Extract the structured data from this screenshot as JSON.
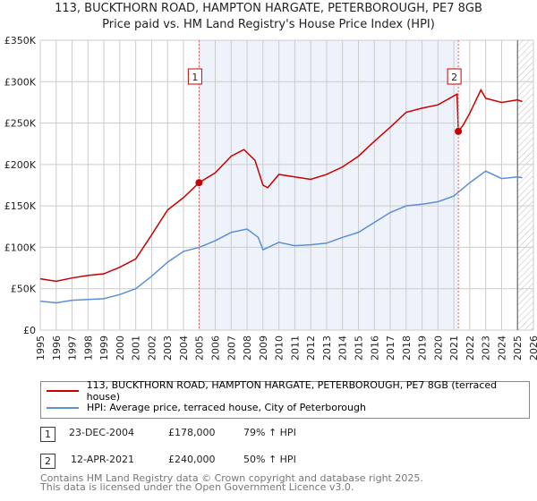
{
  "title": "113, BUCKTHORN ROAD, HAMPTON HARGATE, PETERBOROUGH, PE7 8GB",
  "subtitle": "Price paid vs. HM Land Registry's House Price Index (HPI)",
  "chart_data": {
    "type": "line",
    "title": "113, BUCKTHORN ROAD, HAMPTON HARGATE, PETERBOROUGH, PE7 8GB",
    "xlim": [
      1995,
      2026
    ],
    "ylim": [
      0,
      350000
    ],
    "x_ticks": [
      "1995",
      "1996",
      "1997",
      "1998",
      "1999",
      "2000",
      "2001",
      "2002",
      "2003",
      "2004",
      "2005",
      "2006",
      "2007",
      "2008",
      "2009",
      "2010",
      "2011",
      "2012",
      "2013",
      "2014",
      "2015",
      "2016",
      "2017",
      "2018",
      "2019",
      "2020",
      "2021",
      "2022",
      "2023",
      "2024",
      "2025",
      "2026"
    ],
    "y_ticks": [
      {
        "v": 0,
        "label": "£0"
      },
      {
        "v": 50000,
        "label": "£50K"
      },
      {
        "v": 100000,
        "label": "£100K"
      },
      {
        "v": 150000,
        "label": "£150K"
      },
      {
        "v": 200000,
        "label": "£200K"
      },
      {
        "v": 250000,
        "label": "£250K"
      },
      {
        "v": 300000,
        "label": "£300K"
      },
      {
        "v": 350000,
        "label": "£350K"
      }
    ],
    "grid": true,
    "series": [
      {
        "name": "113, BUCKTHORN ROAD, HAMPTON HARGATE, PETERBOROUGH, PE7 8GB (terraced house)",
        "color": "#cc0000",
        "x": [
          1995,
          1996,
          1997,
          1998,
          1999,
          2000,
          2001,
          2002,
          2003,
          2004,
          2004.98,
          2006,
          2007,
          2007.8,
          2008.5,
          2009,
          2009.3,
          2010,
          2011,
          2012,
          2013,
          2014,
          2015,
          2016,
          2017,
          2018,
          2019,
          2020,
          2021.2,
          2021.28,
          2021.6,
          2022,
          2022.7,
          2023,
          2024,
          2025,
          2025.3
        ],
        "y": [
          62000,
          59000,
          63000,
          66000,
          68000,
          76000,
          86000,
          115000,
          145000,
          160000,
          178000,
          190000,
          210000,
          218000,
          205000,
          175000,
          172000,
          188000,
          185000,
          182000,
          188000,
          197000,
          210000,
          228000,
          245000,
          263000,
          268000,
          272000,
          285000,
          240000,
          248000,
          262000,
          290000,
          280000,
          275000,
          278000,
          276000
        ]
      },
      {
        "name": "HPI: Average price, terraced house, City of Peterborough",
        "color": "#5b8fd6",
        "x": [
          1995,
          1996,
          1997,
          1998,
          1999,
          2000,
          2001,
          2002,
          2003,
          2004,
          2005,
          2006,
          2007,
          2008,
          2008.7,
          2009,
          2010,
          2011,
          2012,
          2013,
          2014,
          2015,
          2016,
          2017,
          2018,
          2019,
          2020,
          2021,
          2022,
          2023,
          2024,
          2025,
          2025.3
        ],
        "y": [
          35000,
          33000,
          36000,
          37000,
          38000,
          43000,
          50000,
          65000,
          82000,
          95000,
          100000,
          108000,
          118000,
          122000,
          112000,
          97000,
          106000,
          102000,
          103000,
          105000,
          112000,
          118000,
          130000,
          142000,
          150000,
          152000,
          155000,
          162000,
          178000,
          192000,
          183000,
          185000,
          184000
        ]
      }
    ],
    "sales": [
      {
        "id": "1",
        "x": 2004.98,
        "price": 178000,
        "date": "23-DEC-2004",
        "price_label": "£178,000",
        "hpi": "79% ↑ HPI"
      },
      {
        "id": "2",
        "x": 2021.28,
        "price": 240000,
        "date": "12-APR-2021",
        "price_label": "£240,000",
        "hpi": "50% ↑ HPI"
      }
    ],
    "forecast_start": 2025.0,
    "legend": "bottom"
  },
  "footer": [
    "Contains HM Land Registry data © Crown copyright and database right 2025.",
    "This data is licensed under the Open Government Licence v3.0."
  ]
}
